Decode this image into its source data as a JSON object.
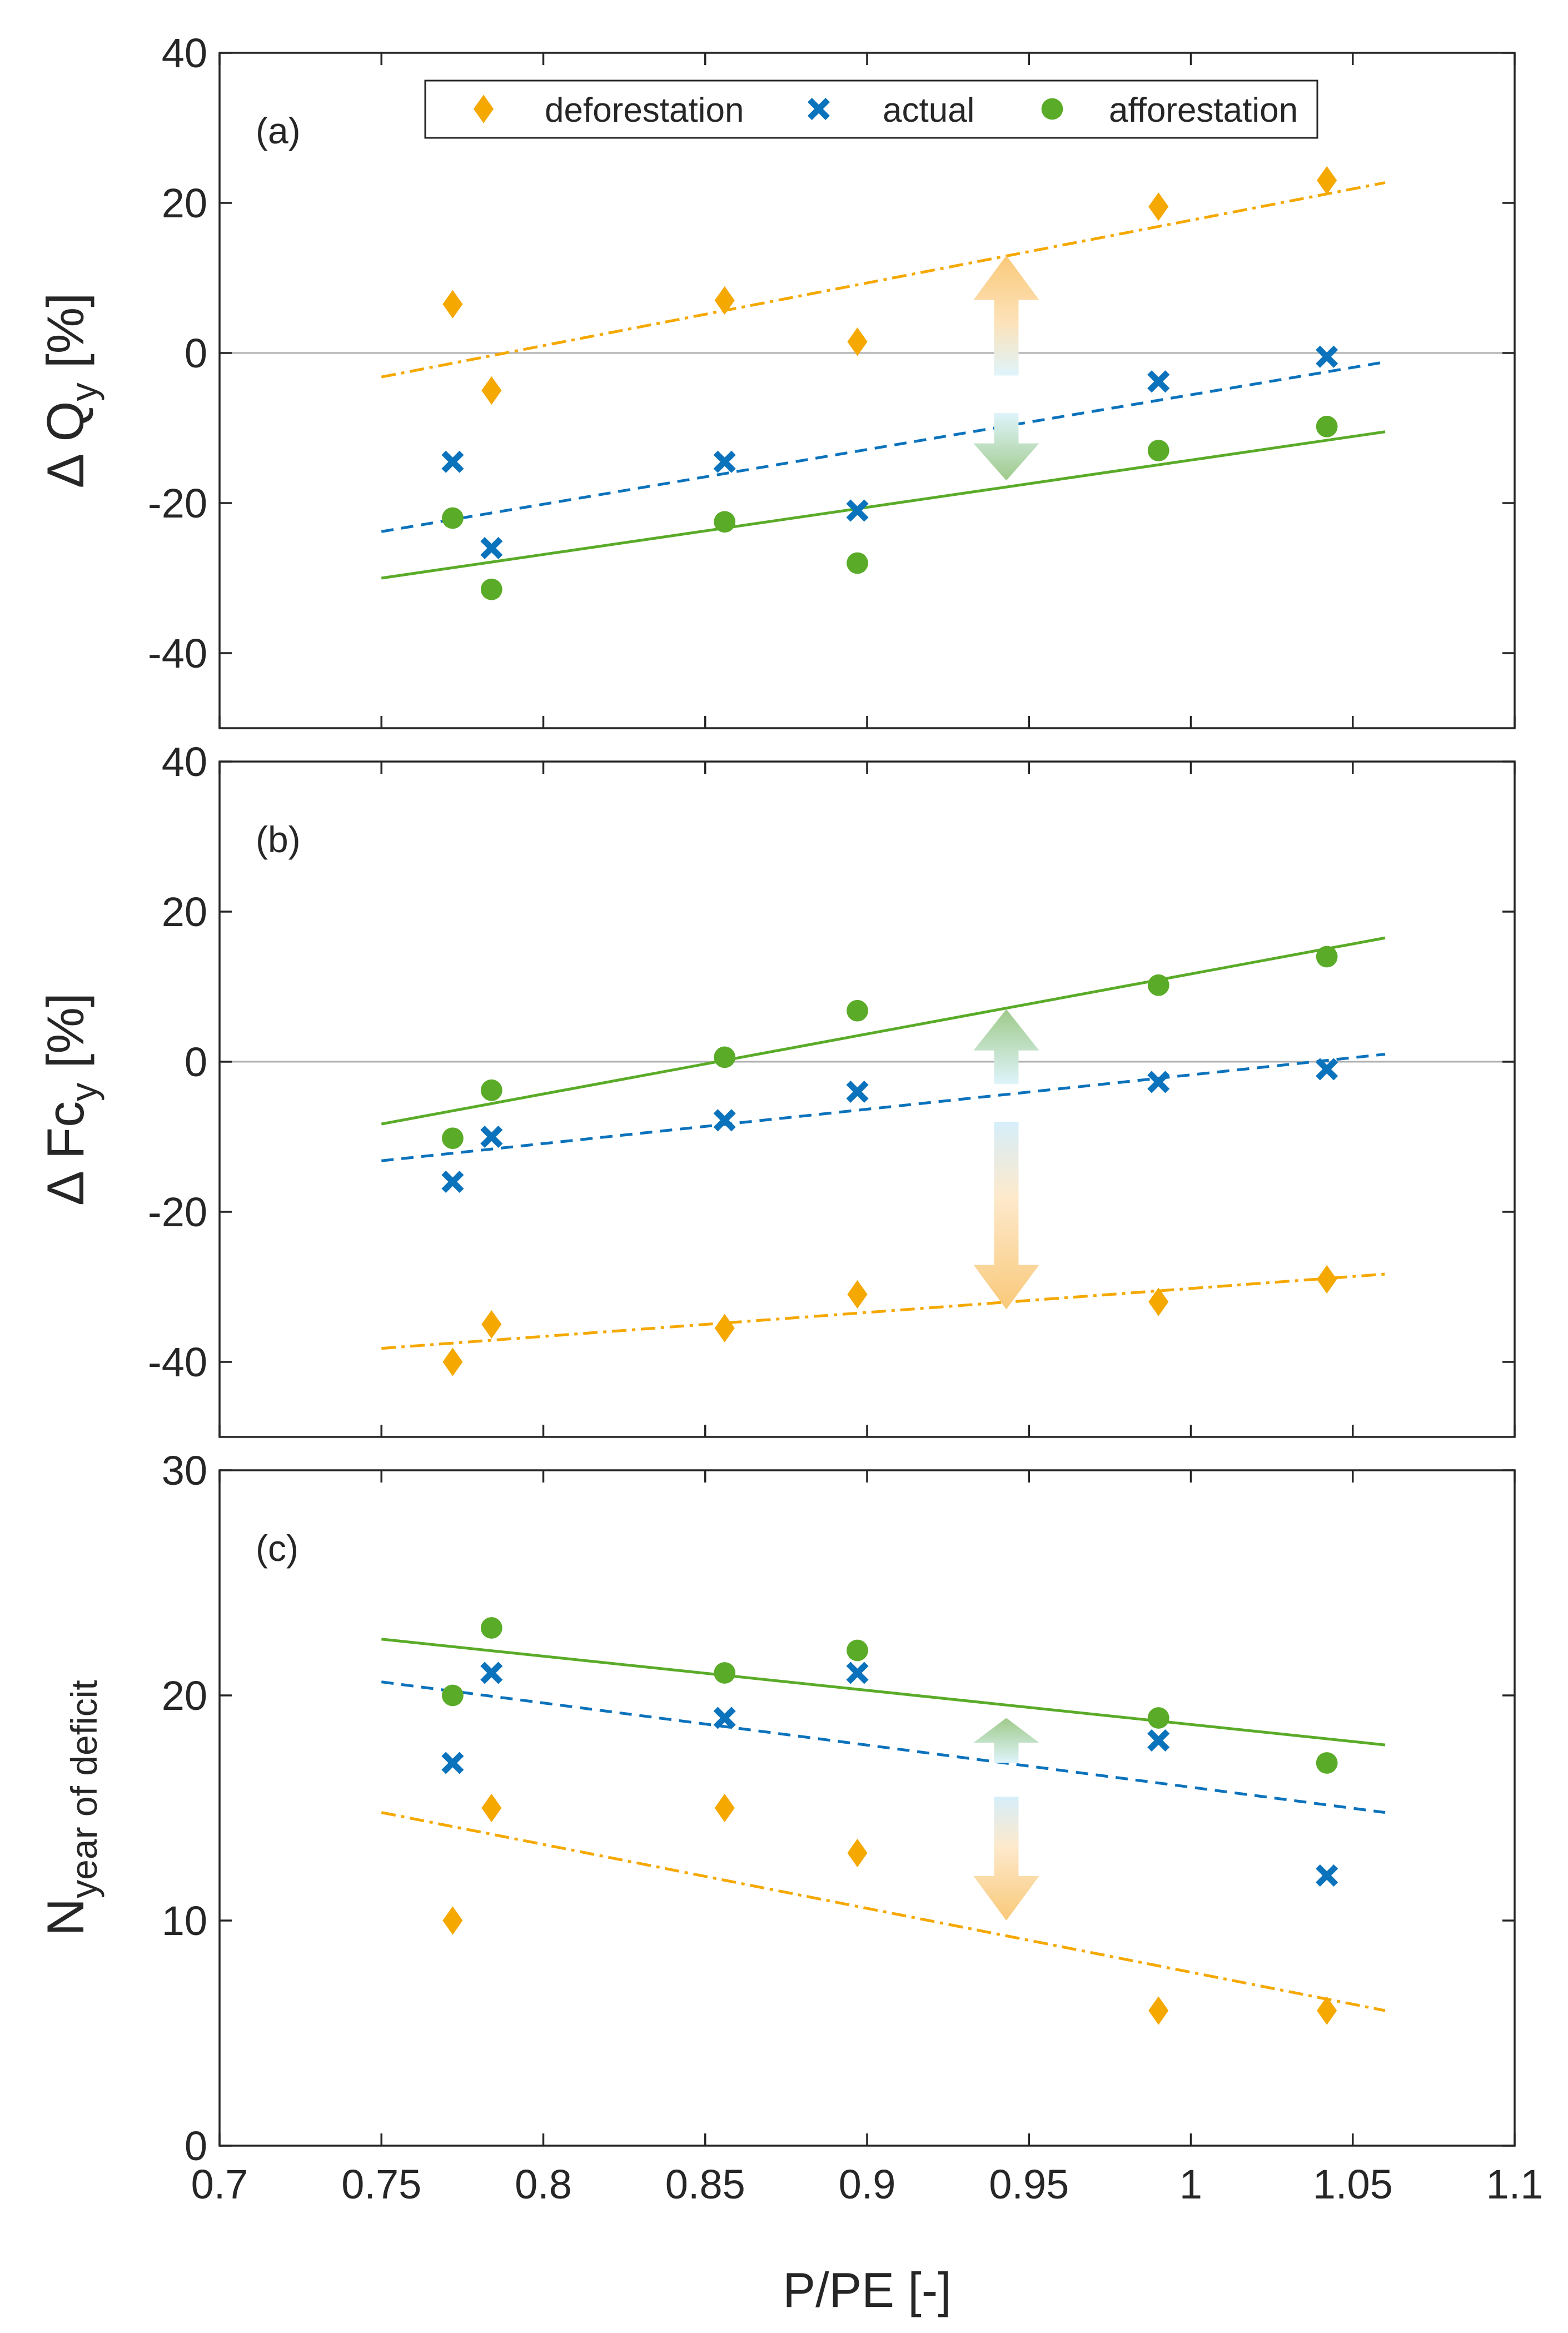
{
  "chart_data": [
    {
      "type": "scatter",
      "panel_label": "(a)",
      "ylabel_main": "Δ Q",
      "ylabel_sub": "y",
      "ylabel_unit": " [%]",
      "ylim": [
        -50,
        40
      ],
      "yticks": [
        -40,
        -20,
        0,
        20,
        40
      ],
      "zero_line": true,
      "series": [
        {
          "name": "deforestation",
          "color": "#f5a800",
          "x": [
            0.772,
            0.784,
            0.856,
            0.897,
            0.99,
            1.042
          ],
          "y": [
            6.5,
            -5,
            7,
            1.5,
            19.5,
            23
          ],
          "fit": [
            [
              0.75,
              -3.2
            ],
            [
              1.06,
              22.7
            ]
          ]
        },
        {
          "name": "actual",
          "color": "#0b72bc",
          "x": [
            0.772,
            0.784,
            0.856,
            0.897,
            0.99,
            1.042
          ],
          "y": [
            -14.5,
            -26,
            -14.5,
            -21,
            -3.8,
            -0.5
          ],
          "fit": [
            [
              0.75,
              -23.8
            ],
            [
              1.06,
              -1.2
            ]
          ]
        },
        {
          "name": "afforestation",
          "color": "#5aab28",
          "x": [
            0.772,
            0.784,
            0.856,
            0.897,
            0.99,
            1.042
          ],
          "y": [
            -22,
            -31.5,
            -22.5,
            -28,
            -13,
            -9.8
          ],
          "fit": [
            [
              0.75,
              -30
            ],
            [
              1.06,
              -10.5
            ]
          ]
        }
      ],
      "arrows": {
        "x": 0.943,
        "up": {
          "from": -3,
          "to": 13
        },
        "down": {
          "from": -8,
          "to": -17
        }
      }
    },
    {
      "type": "scatter",
      "panel_label": "(b)",
      "ylabel_main": "Δ Fc",
      "ylabel_sub": "y",
      "ylabel_unit": " [%]",
      "ylim": [
        -50,
        40
      ],
      "yticks": [
        -40,
        -20,
        0,
        20,
        40
      ],
      "zero_line": true,
      "series": [
        {
          "name": "deforestation",
          "color": "#f5a800",
          "x": [
            0.772,
            0.784,
            0.856,
            0.897,
            0.99,
            1.042
          ],
          "y": [
            -40,
            -35,
            -35.5,
            -31,
            -32,
            -29
          ],
          "fit": [
            [
              0.75,
              -38.2
            ],
            [
              1.06,
              -28.3
            ]
          ]
        },
        {
          "name": "actual",
          "color": "#0b72bc",
          "x": [
            0.772,
            0.784,
            0.856,
            0.897,
            0.99,
            1.042
          ],
          "y": [
            -16,
            -10,
            -7.8,
            -4,
            -2.7,
            -1
          ],
          "fit": [
            [
              0.75,
              -13.2
            ],
            [
              1.06,
              1
            ]
          ]
        },
        {
          "name": "afforestation",
          "color": "#5aab28",
          "x": [
            0.772,
            0.784,
            0.856,
            0.897,
            0.99,
            1.042
          ],
          "y": [
            -10.2,
            -3.8,
            0.6,
            6.8,
            10.2,
            14
          ],
          "fit": [
            [
              0.75,
              -8.3
            ],
            [
              1.06,
              16.5
            ]
          ]
        }
      ],
      "arrows": {
        "x": 0.943,
        "up": {
          "from": -3,
          "to": 7
        },
        "down": {
          "from": -8,
          "to": -33
        }
      }
    },
    {
      "type": "scatter",
      "panel_label": "(c)",
      "ylabel_main": "N",
      "ylabel_sub": "year of deficit",
      "ylabel_unit": "",
      "ylim": [
        0,
        30
      ],
      "yticks": [
        0,
        10,
        20,
        30
      ],
      "zero_line": false,
      "series": [
        {
          "name": "deforestation",
          "color": "#f5a800",
          "x": [
            0.772,
            0.784,
            0.856,
            0.897,
            0.99,
            1.042
          ],
          "y": [
            10,
            15,
            15,
            13,
            6,
            6
          ],
          "fit": [
            [
              0.75,
              14.8
            ],
            [
              1.06,
              6
            ]
          ]
        },
        {
          "name": "actual",
          "color": "#0b72bc",
          "x": [
            0.772,
            0.784,
            0.856,
            0.897,
            0.99,
            1.042
          ],
          "y": [
            17,
            21,
            19,
            21,
            18,
            12
          ],
          "fit": [
            [
              0.75,
              20.6
            ],
            [
              1.06,
              14.8
            ]
          ]
        },
        {
          "name": "afforestation",
          "color": "#5aab28",
          "x": [
            0.772,
            0.784,
            0.856,
            0.897,
            0.99,
            1.042
          ],
          "y": [
            20,
            23,
            21,
            22,
            19,
            17
          ],
          "fit": [
            [
              0.75,
              22.5
            ],
            [
              1.06,
              17.8
            ]
          ]
        }
      ],
      "arrows": {
        "x": 0.943,
        "up": {
          "from": 17,
          "to": 19
        },
        "down": {
          "from": 15.5,
          "to": 10
        }
      }
    }
  ],
  "xlabel": "P/PE [-]",
  "xlim": [
    0.7,
    1.1
  ],
  "xticks": [
    "0.7",
    "0.75",
    "0.8",
    "0.85",
    "0.9",
    "0.95",
    "1",
    "1.05",
    "1.1"
  ],
  "legend": [
    {
      "label": "deforestation",
      "marker": "diamond",
      "color": "#f5a800"
    },
    {
      "label": "actual",
      "marker": "x",
      "color": "#0b72bc"
    },
    {
      "label": "afforestation",
      "marker": "circle",
      "color": "#5aab28"
    }
  ]
}
